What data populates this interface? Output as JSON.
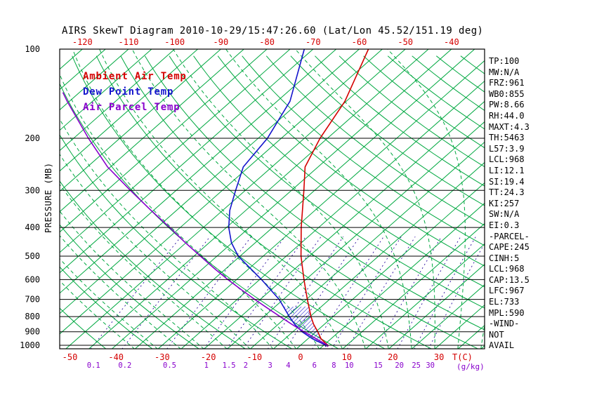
{
  "title": "AIRS SkewT Diagram 2010-10-29/15:47:26.60 (Lat/Lon 45.52/151.19 deg)",
  "legend": {
    "ambient": {
      "label": "Ambient Air Temp",
      "color": "#d40000"
    },
    "dewpoint": {
      "label": "Dew Point Temp",
      "color": "#1414cc"
    },
    "parcel": {
      "label": "Air Parcel Temp",
      "color": "#8800cc"
    }
  },
  "colors": {
    "temperature": "#d40000",
    "moisture": "#8800cc",
    "grid_green": "#00a840",
    "mixing_line": "#2a0b9e",
    "frame": "#000000"
  },
  "axes": {
    "pressure_title": "PRESSURE (MB)",
    "pressure_ticks": [
      100,
      200,
      300,
      400,
      500,
      600,
      700,
      800,
      900,
      1000
    ],
    "top_temperature_ticks": [
      -120,
      -110,
      -100,
      -90,
      -80,
      -70,
      -60,
      -50,
      -40
    ],
    "bottom_temperature_ticks": [
      -50,
      -40,
      -30,
      -20,
      -10,
      0,
      10,
      20,
      30
    ],
    "temperature_unit": "T(C)",
    "mixing_ratio_ticks": [
      0.1,
      0.2,
      0.5,
      1,
      1.5,
      2,
      3,
      4,
      6,
      8,
      10,
      15,
      20,
      25,
      30
    ],
    "mixing_ratio_unit": "(g/kg)"
  },
  "stats": [
    "TP:100",
    "MW:N/A",
    "FRZ:961",
    "WB0:855",
    "PW:8.66",
    "RH:44.0",
    "MAXT:4.3",
    "TH:5463",
    "L57:3.9",
    "LCL:968",
    "LI:12.1",
    "SI:19.4",
    "TT:24.3",
    "KI:257",
    "SW:N/A",
    "EI:0.3",
    "-PARCEL-",
    "CAPE:245",
    "CINH:5",
    "LCL:968",
    "CAP:13.5",
    "LFC:967",
    "EL:733",
    "MPL:590",
    "-WIND-",
    "NOT",
    "AVAIL"
  ],
  "grid": {
    "isotherm_step_c": 5,
    "dry_adiabat_theta_k": {
      "min": 220,
      "max": 460,
      "step": 10
    },
    "moist_adiabat_start_c": {
      "min": -35,
      "max": 45,
      "step": 5
    }
  },
  "chart_data": {
    "type": "line",
    "title": "AIRS SkewT Diagram",
    "xlabel": "Temperature (C)",
    "ylabel": "Pressure (MB)",
    "y_scale": "log",
    "ylim": [
      100,
      1030
    ],
    "x_skew": "isotherms slanted ~45 deg",
    "series": [
      {
        "name": "Ambient Air Temp",
        "color": "#d40000",
        "points": [
          [
            1012,
            6.2
          ],
          [
            1000,
            5.9
          ],
          [
            950,
            2.8
          ],
          [
            900,
            0.4
          ],
          [
            850,
            -2.3
          ],
          [
            800,
            -4.8
          ],
          [
            700,
            -9.8
          ],
          [
            600,
            -15.4
          ],
          [
            500,
            -21.8
          ],
          [
            400,
            -28.8
          ],
          [
            300,
            -37.3
          ],
          [
            250,
            -42.8
          ],
          [
            200,
            -46.6
          ],
          [
            150,
            -50.3
          ],
          [
            100,
            -58.0
          ]
        ]
      },
      {
        "name": "Dew Point Temp",
        "color": "#1414cc",
        "points": [
          [
            1012,
            5.8
          ],
          [
            1000,
            5.5
          ],
          [
            950,
            0.9
          ],
          [
            900,
            -3.0
          ],
          [
            850,
            -6.4
          ],
          [
            800,
            -9.5
          ],
          [
            700,
            -15.9
          ],
          [
            600,
            -24.6
          ],
          [
            500,
            -35.4
          ],
          [
            450,
            -40.2
          ],
          [
            400,
            -44.5
          ],
          [
            350,
            -48.5
          ],
          [
            300,
            -52.1
          ],
          [
            250,
            -56.2
          ],
          [
            200,
            -58.0
          ],
          [
            150,
            -62.2
          ],
          [
            100,
            -71.9
          ]
        ]
      },
      {
        "name": "Air Parcel Temp",
        "color": "#8800cc",
        "points": [
          [
            1012,
            6.2
          ],
          [
            1000,
            5.9
          ],
          [
            968,
            3.2
          ],
          [
            900,
            -2.6
          ],
          [
            850,
            -7.0
          ],
          [
            800,
            -11.5
          ],
          [
            750,
            -16.2
          ],
          [
            700,
            -21.2
          ],
          [
            650,
            -26.4
          ],
          [
            600,
            -31.9
          ],
          [
            550,
            -37.6
          ],
          [
            500,
            -43.6
          ],
          [
            450,
            -50.2
          ],
          [
            400,
            -57.3
          ],
          [
            350,
            -65.6
          ],
          [
            300,
            -74.9
          ],
          [
            250,
            -85.6
          ],
          [
            200,
            -96.8
          ],
          [
            150,
            -110.5
          ],
          [
            140,
            -113.6
          ]
        ]
      }
    ],
    "hatched_region": {
      "between": [
        "Dew Point Temp",
        "Ambient Air Temp"
      ],
      "pressure_range": [
        967,
        740
      ],
      "style": "blue-hatch"
    }
  }
}
